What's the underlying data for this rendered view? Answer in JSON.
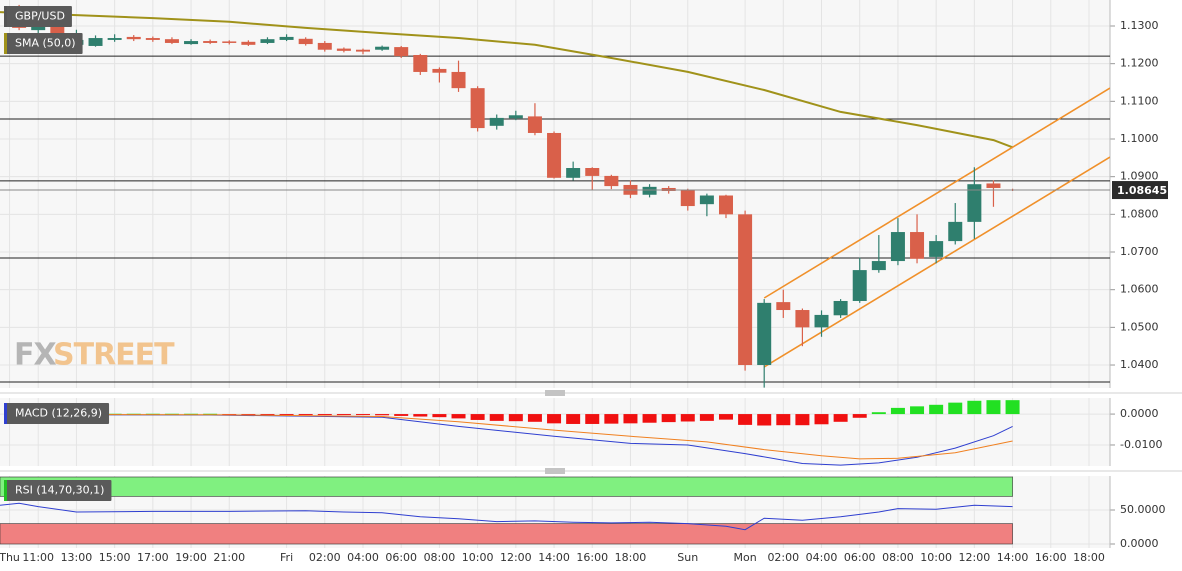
{
  "chart_data": [
    {
      "type": "candlestick",
      "title": "GBP/USD",
      "up_color": "#2f7f6e",
      "down_color": "#d9604a",
      "x": [
        10,
        11,
        12,
        13,
        14,
        15,
        16,
        17,
        18,
        19,
        20,
        21,
        22,
        23,
        24,
        25,
        26,
        27,
        28,
        29,
        30,
        31,
        32,
        33,
        34,
        35,
        36,
        37,
        38,
        39,
        40,
        41,
        42,
        43,
        44,
        45,
        46,
        47,
        48,
        49,
        50,
        51,
        52,
        53,
        54,
        55,
        56,
        57,
        58,
        59,
        60,
        61,
        62
      ],
      "open": [
        1.1337,
        1.1289,
        1.1327,
        1.125,
        1.1247,
        1.1263,
        1.1271,
        1.1268,
        1.1265,
        1.1252,
        1.126,
        1.1259,
        1.1258,
        1.1255,
        1.1263,
        1.1266,
        1.1255,
        1.124,
        1.1237,
        1.1237,
        1.1244,
        1.1223,
        1.1186,
        1.1178,
        1.1135,
        1.1035,
        1.1055,
        1.106,
        1.1016,
        1.0897,
        1.0923,
        1.0902,
        1.0878,
        1.0852,
        1.087,
        1.0865,
        1.0827,
        1.085,
        1.08,
        1.04,
        1.0567,
        1.0546,
        1.05,
        1.0532,
        1.057,
        1.0652,
        1.0676,
        1.0753,
        1.0687,
        1.0729,
        1.078,
        1.0882,
        1.0866
      ],
      "high": [
        1.1356,
        1.1348,
        1.1342,
        1.129,
        1.1275,
        1.1278,
        1.1276,
        1.1272,
        1.127,
        1.1265,
        1.1264,
        1.1262,
        1.1262,
        1.127,
        1.1278,
        1.127,
        1.126,
        1.1243,
        1.124,
        1.1248,
        1.1247,
        1.1226,
        1.119,
        1.1208,
        1.114,
        1.1065,
        1.1075,
        1.1095,
        1.102,
        1.094,
        1.0925,
        1.0905,
        1.089,
        1.088,
        1.0875,
        1.0868,
        1.0855,
        1.0852,
        1.081,
        1.0575,
        1.06,
        1.055,
        1.0545,
        1.0575,
        1.0685,
        1.0745,
        1.079,
        1.08,
        1.0745,
        1.083,
        1.0925,
        1.089,
        1.0868
      ],
      "low": [
        1.1289,
        1.1281,
        1.1252,
        1.1245,
        1.1245,
        1.1258,
        1.126,
        1.1258,
        1.1252,
        1.125,
        1.1252,
        1.1251,
        1.1247,
        1.1252,
        1.126,
        1.1248,
        1.1232,
        1.123,
        1.1225,
        1.1234,
        1.1215,
        1.117,
        1.115,
        1.1125,
        1.102,
        1.1025,
        1.105,
        1.101,
        1.0895,
        1.089,
        1.0865,
        1.0867,
        1.0843,
        1.0845,
        1.0855,
        1.081,
        1.0795,
        1.079,
        1.0385,
        1.034,
        1.0525,
        1.045,
        1.0475,
        1.0525,
        1.0565,
        1.0645,
        1.0665,
        1.067,
        1.067,
        1.072,
        1.0735,
        1.082,
        1.0862
      ],
      "close": [
        1.1295,
        1.1329,
        1.1263,
        1.1263,
        1.1268,
        1.1268,
        1.1265,
        1.1263,
        1.1255,
        1.126,
        1.1255,
        1.1255,
        1.125,
        1.1265,
        1.1271,
        1.1252,
        1.1237,
        1.1234,
        1.1232,
        1.1245,
        1.122,
        1.1178,
        1.1176,
        1.1135,
        1.1029,
        1.1056,
        1.1063,
        1.1016,
        1.0897,
        1.0923,
        1.0902,
        1.0875,
        1.0852,
        1.0873,
        1.0862,
        1.0822,
        1.085,
        1.08,
        1.04,
        1.0565,
        1.0546,
        1.05,
        1.0533,
        1.057,
        1.0652,
        1.0676,
        1.0753,
        1.0682,
        1.0729,
        1.078,
        1.088,
        1.087,
        1.0864
      ],
      "overlays": [
        {
          "name": "SMA (50,0)",
          "color": "#a0921a",
          "x": [
            9,
            13,
            17,
            21,
            25,
            29,
            33,
            37,
            41,
            45,
            49,
            53,
            57,
            61,
            62
          ],
          "values": [
            1.1337,
            1.1329,
            1.1321,
            1.1311,
            1.1295,
            1.1281,
            1.1268,
            1.125,
            1.1215,
            1.1178,
            1.113,
            1.1072,
            1.1037,
            1.0997,
            1.0978
          ]
        }
      ],
      "hlines": [
        1.122,
        1.1053,
        1.0889,
        1.0684,
        1.0355
      ],
      "trendlines": [
        {
          "color": "#f0902a",
          "x": [
            49,
            67.1
          ],
          "values": [
            1.0578,
            1.1135
          ]
        },
        {
          "color": "#f0902a",
          "x": [
            49,
            67.1
          ],
          "values": [
            1.0395,
            1.0952
          ]
        }
      ],
      "last_price": 1.08645,
      "watermark": [
        "FX",
        "STREET"
      ],
      "xlim": [
        9,
        67.1
      ],
      "xticks": [
        {
          "value": 9.5,
          "label": "Thu"
        },
        {
          "value": 11,
          "label": "11:00"
        },
        {
          "value": 13,
          "label": "13:00"
        },
        {
          "value": 15,
          "label": "15:00"
        },
        {
          "value": 17,
          "label": "17:00"
        },
        {
          "value": 19,
          "label": "19:00"
        },
        {
          "value": 21,
          "label": "21:00"
        },
        {
          "value": 24,
          "label": "Fri"
        },
        {
          "value": 26,
          "label": "02:00"
        },
        {
          "value": 28,
          "label": "04:00"
        },
        {
          "value": 30,
          "label": "06:00"
        },
        {
          "value": 32,
          "label": "08:00"
        },
        {
          "value": 34,
          "label": "10:00"
        },
        {
          "value": 36,
          "label": "12:00"
        },
        {
          "value": 38,
          "label": "14:00"
        },
        {
          "value": 40,
          "label": "16:00"
        },
        {
          "value": 42,
          "label": "18:00"
        },
        {
          "value": 45,
          "label": "Sun"
        },
        {
          "value": 48,
          "label": "Mon"
        },
        {
          "value": 50,
          "label": "02:00"
        },
        {
          "value": 52,
          "label": "04:00"
        },
        {
          "value": 54,
          "label": "06:00"
        },
        {
          "value": 56,
          "label": "08:00"
        },
        {
          "value": 58,
          "label": "10:00"
        },
        {
          "value": 60,
          "label": "12:00"
        },
        {
          "value": 62,
          "label": "14:00"
        },
        {
          "value": 64,
          "label": "16:00"
        },
        {
          "value": 66,
          "label": "18:00"
        }
      ],
      "ylim": [
        1.0339,
        1.1369
      ],
      "yticks": [
        {
          "value": 1.13,
          "label": "1.1300"
        },
        {
          "value": 1.12,
          "label": "1.1200"
        },
        {
          "value": 1.11,
          "label": "1.1100"
        },
        {
          "value": 1.1,
          "label": "1.1000"
        },
        {
          "value": 1.09,
          "label": "1.0900"
        },
        {
          "value": 1.08,
          "label": "1.0800"
        },
        {
          "value": 1.07,
          "label": "1.0700"
        },
        {
          "value": 1.06,
          "label": "1.0600"
        },
        {
          "value": 1.05,
          "label": "1.0500"
        },
        {
          "value": 1.04,
          "label": "1.0400"
        }
      ],
      "grid": true,
      "title_color": "#555555"
    },
    {
      "type": "macd",
      "title": "MACD (12,26,9)",
      "title_color": "#2f3fd0",
      "up_color": "#22e022",
      "down_color": "#f01010",
      "x": [
        10,
        11,
        12,
        13,
        14,
        15,
        16,
        17,
        18,
        19,
        20,
        21,
        22,
        23,
        24,
        25,
        26,
        27,
        28,
        29,
        30,
        31,
        32,
        33,
        34,
        35,
        36,
        37,
        38,
        39,
        40,
        41,
        42,
        43,
        44,
        45,
        46,
        47,
        48,
        49,
        50,
        51,
        52,
        53,
        54,
        55,
        56,
        57,
        58,
        59,
        60,
        61,
        62
      ],
      "histogram": [
        0.0002,
        0.0002,
        0.0002,
        0.0002,
        0.0001,
        0.0001,
        0.0001,
        0.0001,
        0.0001,
        0.0001,
        0.0001,
        -0.0001,
        -0.0001,
        -0.0001,
        -0.0002,
        -0.0002,
        -0.0003,
        -0.0003,
        -0.0003,
        -0.0004,
        -0.0006,
        -0.0008,
        -0.001,
        -0.0014,
        -0.0019,
        -0.0022,
        -0.0023,
        -0.0025,
        -0.003,
        -0.0032,
        -0.0032,
        -0.0031,
        -0.003,
        -0.0028,
        -0.0026,
        -0.0024,
        -0.0022,
        -0.0018,
        -0.0035,
        -0.0037,
        -0.0036,
        -0.0036,
        -0.0033,
        -0.0025,
        -0.0012,
        0.0006,
        0.002,
        0.0025,
        0.003,
        0.0037,
        0.0043,
        0.0045,
        0.0045
      ],
      "lines": [
        {
          "color": "#2f3fd0",
          "x": [
            10,
            20,
            29,
            33,
            38,
            42,
            45,
            48,
            51,
            53,
            55,
            57,
            59,
            61,
            62
          ],
          "values": [
            -0.0002,
            -0.0003,
            -0.001,
            -0.004,
            -0.0072,
            -0.0095,
            -0.01,
            -0.0128,
            -0.016,
            -0.0165,
            -0.0158,
            -0.014,
            -0.011,
            -0.007,
            -0.004
          ]
        },
        {
          "color": "#f08020",
          "x": [
            10,
            20,
            29,
            33,
            38,
            42,
            46,
            49,
            52,
            54,
            56,
            59,
            62
          ],
          "values": [
            -0.0001,
            -0.0002,
            -0.0008,
            -0.0025,
            -0.0052,
            -0.0072,
            -0.009,
            -0.0115,
            -0.0135,
            -0.0145,
            -0.0143,
            -0.0125,
            -0.0087
          ]
        }
      ],
      "ylim": [
        -0.0168,
        0.0052
      ],
      "yticks": [
        {
          "value": 0,
          "label": "0.0000"
        },
        {
          "value": -0.01,
          "label": "-0.0100"
        }
      ],
      "grid": true
    },
    {
      "type": "rsi",
      "title": "RSI (14,70,30,1)",
      "title_color": "#22c022",
      "color": "#2f3fd0",
      "overbought": 70,
      "oversold": 30,
      "overbought_color": "#80f080",
      "oversold_color": "#f08080",
      "x": [
        9,
        10,
        11,
        13,
        17,
        21,
        25,
        27,
        29,
        31,
        33,
        35,
        37,
        39,
        41,
        43,
        45,
        47,
        48,
        49,
        51,
        53,
        55,
        56,
        58,
        60,
        62
      ],
      "values": [
        57,
        60,
        55,
        47,
        48,
        48,
        49,
        47,
        46,
        40,
        37,
        33,
        34,
        32,
        31,
        32,
        30,
        26,
        21,
        38,
        35,
        40,
        47,
        52,
        51,
        57,
        55
      ],
      "ylim": [
        -5.9,
        100
      ],
      "yticks": [
        {
          "value": 50,
          "label": "50.0000"
        },
        {
          "value": 0,
          "label": "0.0000"
        }
      ],
      "grid": true
    }
  ]
}
